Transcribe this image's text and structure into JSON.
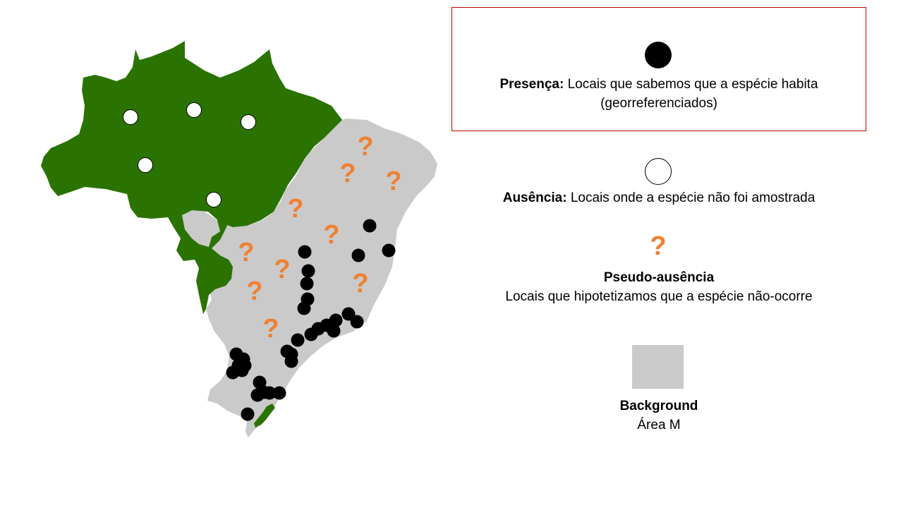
{
  "colors": {
    "forest": "#2a7300",
    "background_area": "#cacaca",
    "presence": "#000000",
    "absence": "#ffffff",
    "pseudo_absence": "#f08033",
    "frame": "#c00000"
  },
  "legend": {
    "presence": {
      "icon": "black-dot-icon",
      "title": "Presença:",
      "text": "Locais que sabemos que a espécie habita",
      "text2": "(georreferenciados)"
    },
    "absence": {
      "icon": "white-dot-icon",
      "title": "Ausência:",
      "text": "Locais onde a espécie não foi amostrada"
    },
    "pseudo_absence": {
      "icon": "question-mark-icon",
      "glyph": "?",
      "title": "Pseudo-ausência",
      "text": "Locais que hipotetizamos que a espécie não-ocorre"
    },
    "background": {
      "icon": "gray-square-icon",
      "title": "Background",
      "text": "Área M"
    }
  },
  "map": {
    "question_glyph": "?",
    "presence_count": 38,
    "absence_count": 5,
    "pseudo_absence_count": 12
  }
}
